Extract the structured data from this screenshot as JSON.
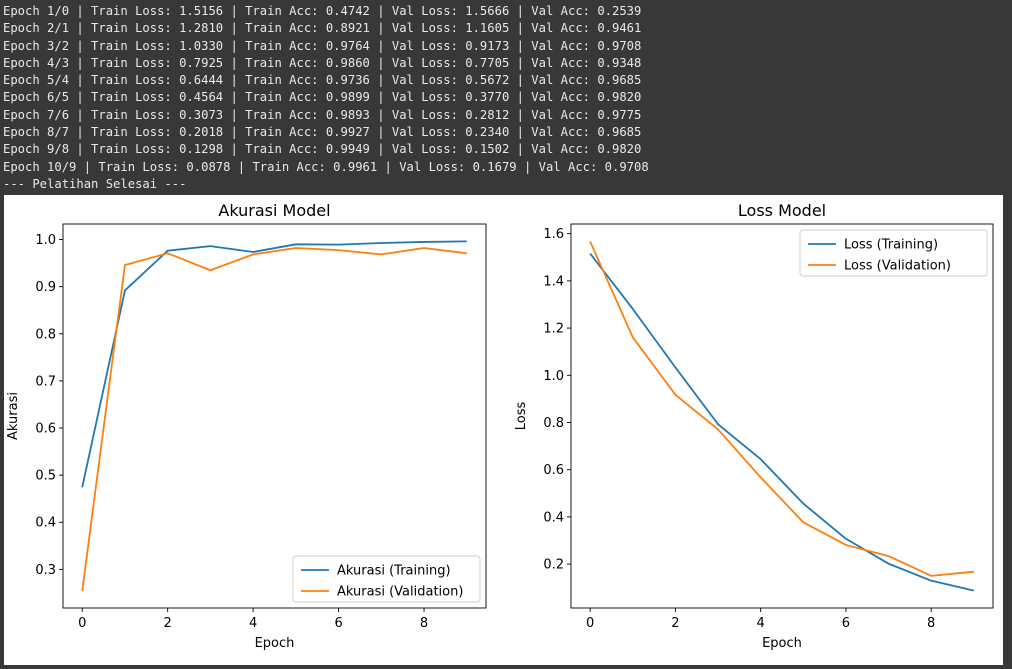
{
  "console": {
    "lines": [
      "Epoch 1/0 | Train Loss: 1.5156 | Train Acc: 0.4742 | Val Loss: 1.5666 | Val Acc: 0.2539",
      "Epoch 2/1 | Train Loss: 1.2810 | Train Acc: 0.8921 | Val Loss: 1.1605 | Val Acc: 0.9461",
      "Epoch 3/2 | Train Loss: 1.0330 | Train Acc: 0.9764 | Val Loss: 0.9173 | Val Acc: 0.9708",
      "Epoch 4/3 | Train Loss: 0.7925 | Train Acc: 0.9860 | Val Loss: 0.7705 | Val Acc: 0.9348",
      "Epoch 5/4 | Train Loss: 0.6444 | Train Acc: 0.9736 | Val Loss: 0.5672 | Val Acc: 0.9685",
      "Epoch 6/5 | Train Loss: 0.4564 | Train Acc: 0.9899 | Val Loss: 0.3770 | Val Acc: 0.9820",
      "Epoch 7/6 | Train Loss: 0.3073 | Train Acc: 0.9893 | Val Loss: 0.2812 | Val Acc: 0.9775",
      "Epoch 8/7 | Train Loss: 0.2018 | Train Acc: 0.9927 | Val Loss: 0.2340 | Val Acc: 0.9685",
      "Epoch 9/8 | Train Loss: 0.1298 | Train Acc: 0.9949 | Val Loss: 0.1502 | Val Acc: 0.9820",
      "Epoch 10/9 | Train Loss: 0.0878 | Train Acc: 0.9961 | Val Loss: 0.1679 | Val Acc: 0.9708",
      "--- Pelatihan Selesai ---"
    ]
  },
  "colors": {
    "training": "#1f77b4",
    "validation": "#ff7f0e"
  },
  "chart_data": [
    {
      "type": "line",
      "title": "Akurasi Model",
      "xlabel": "Epoch",
      "ylabel": "Akurasi",
      "xlim": [
        -0.45,
        9.45
      ],
      "ylim": [
        0.218,
        1.033
      ],
      "xticks": [
        0,
        2,
        4,
        6,
        8
      ],
      "yticks": [
        0.3,
        0.4,
        0.5,
        0.6,
        0.7,
        0.8,
        0.9,
        1.0
      ],
      "legend_position": "lower-right",
      "x": [
        0,
        1,
        2,
        3,
        4,
        5,
        6,
        7,
        8,
        9
      ],
      "series": [
        {
          "name": "Akurasi (Training)",
          "values": [
            0.4742,
            0.8921,
            0.9764,
            0.986,
            0.9736,
            0.9899,
            0.9893,
            0.9927,
            0.9949,
            0.9961
          ]
        },
        {
          "name": "Akurasi (Validation)",
          "values": [
            0.2539,
            0.9461,
            0.9708,
            0.9348,
            0.9685,
            0.982,
            0.9775,
            0.9685,
            0.982,
            0.9708
          ]
        }
      ]
    },
    {
      "type": "line",
      "title": "Loss Model",
      "xlabel": "Epoch",
      "ylabel": "Loss",
      "xlim": [
        -0.45,
        9.45
      ],
      "ylim": [
        0.014,
        1.641
      ],
      "xticks": [
        0,
        2,
        4,
        6,
        8
      ],
      "yticks": [
        0.2,
        0.4,
        0.6,
        0.8,
        1.0,
        1.2,
        1.4,
        1.6
      ],
      "legend_position": "upper-right",
      "x": [
        0,
        1,
        2,
        3,
        4,
        5,
        6,
        7,
        8,
        9
      ],
      "series": [
        {
          "name": "Loss (Training)",
          "values": [
            1.5156,
            1.281,
            1.033,
            0.7925,
            0.6444,
            0.4564,
            0.3073,
            0.2018,
            0.1298,
            0.0878
          ]
        },
        {
          "name": "Loss (Validation)",
          "values": [
            1.5666,
            1.1605,
            0.9173,
            0.7705,
            0.5672,
            0.377,
            0.2812,
            0.234,
            0.1502,
            0.1679
          ]
        }
      ]
    }
  ]
}
